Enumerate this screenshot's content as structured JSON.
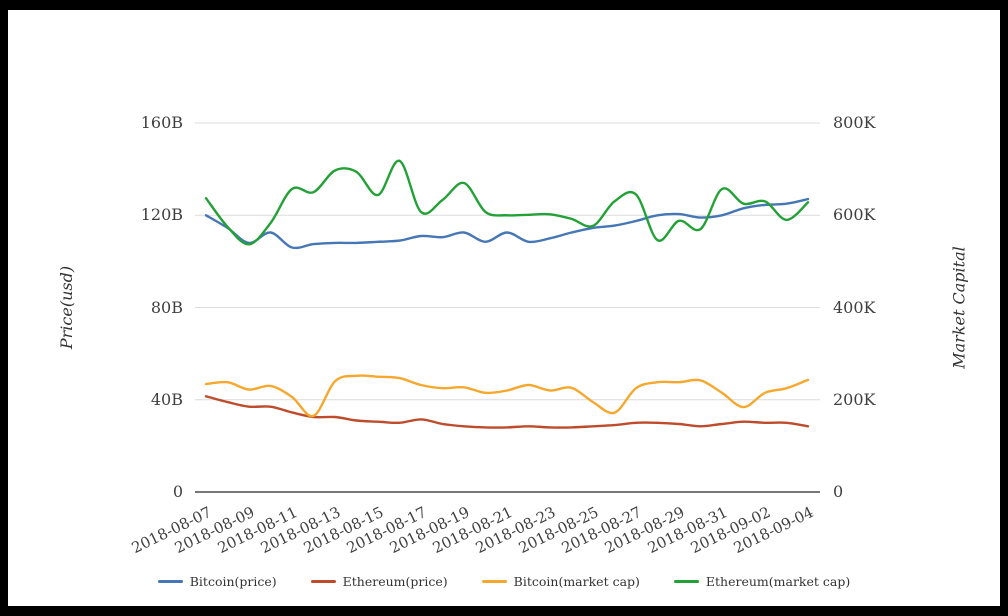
{
  "chart_data": {
    "type": "line",
    "title": "",
    "x": [
      "2018-08-07",
      "2018-08-08",
      "2018-08-09",
      "2018-08-10",
      "2018-08-11",
      "2018-08-12",
      "2018-08-13",
      "2018-08-14",
      "2018-08-15",
      "2018-08-16",
      "2018-08-17",
      "2018-08-18",
      "2018-08-19",
      "2018-08-20",
      "2018-08-21",
      "2018-08-22",
      "2018-08-23",
      "2018-08-24",
      "2018-08-25",
      "2018-08-26",
      "2018-08-27",
      "2018-08-28",
      "2018-08-29",
      "2018-08-30",
      "2018-08-31",
      "2018-09-01",
      "2018-09-02",
      "2018-09-03",
      "2018-09-04"
    ],
    "x_ticks_shown": [
      "2018-08-07",
      "2018-08-09",
      "2018-08-11",
      "2018-08-13",
      "2018-08-15",
      "2018-08-17",
      "2018-08-19",
      "2018-08-21",
      "2018-08-23",
      "2018-08-25",
      "2018-08-27",
      "2018-08-29",
      "2018-08-31",
      "2018-09-02",
      "2018-09-04"
    ],
    "y_left": {
      "title": "Price(usd)",
      "tick_labels": [
        "0",
        "40B",
        "80B",
        "120B",
        "160B"
      ],
      "tick_values": [
        0,
        40,
        80,
        120,
        160
      ],
      "min": 0,
      "max": 160
    },
    "y_right": {
      "title": "Market Capital",
      "tick_labels": [
        "0",
        "200K",
        "400K",
        "600K",
        "800K"
      ],
      "tick_values": [
        0,
        200,
        400,
        600,
        800
      ],
      "min": 0,
      "max": 800
    },
    "grid": "horizontal",
    "legend_position": "bottom",
    "series": [
      {
        "name": "Bitcoin(price)",
        "axis": "left",
        "unit": "B",
        "color": "#4576B5",
        "values": [
          120,
          114.5,
          108,
          112.5,
          106,
          107.5,
          108,
          108,
          108.5,
          109,
          111,
          110.5,
          112.5,
          108.5,
          112.5,
          108.5,
          110,
          112.5,
          114.5,
          115.5,
          117.5,
          120,
          120.5,
          119,
          120,
          123,
          124.5,
          125,
          127
        ]
      },
      {
        "name": "Ethereum(price)",
        "axis": "left",
        "unit": "B",
        "color": "#BE4B2B",
        "values": [
          41.5,
          39,
          37,
          37,
          34.5,
          32.5,
          32.5,
          31,
          30.5,
          30,
          31.5,
          29.5,
          28.5,
          28,
          28,
          28.5,
          28,
          28,
          28.5,
          29,
          30,
          30,
          29.5,
          28.5,
          29.5,
          30.5,
          30,
          30,
          28.5
        ]
      },
      {
        "name": "Bitcoin(market cap)",
        "axis": "right",
        "unit": "K",
        "color": "#F5A82D",
        "values": [
          234,
          238,
          222,
          230,
          206,
          165,
          240,
          252,
          250,
          247,
          232,
          225,
          227,
          215,
          220,
          232,
          220,
          226,
          195,
          172,
          225,
          238,
          238,
          242,
          215,
          184,
          215,
          225,
          243
        ]
      },
      {
        "name": "Ethereum(market cap)",
        "axis": "right",
        "unit": "K",
        "color": "#23A137",
        "values": [
          637,
          575,
          537,
          583,
          657,
          650,
          697,
          694,
          644,
          718,
          607,
          633,
          670,
          607,
          600,
          601,
          602,
          592,
          577,
          630,
          645,
          546,
          588,
          570,
          657,
          625,
          630,
          590,
          628
        ]
      }
    ],
    "colors": {
      "grid_line": "#DCDCDC",
      "axis_line": "#4A4A4A",
      "tick_text": "#3F3F3F"
    }
  }
}
